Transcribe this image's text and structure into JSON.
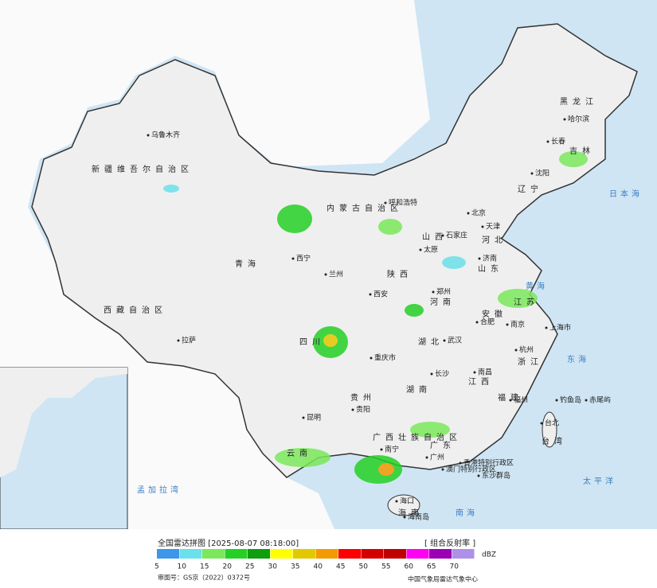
{
  "legend": {
    "title": "全国雷达拼图 [2025-08-07 08:18:00]",
    "product": "[ 组合反射率 ]",
    "unit": "dBZ",
    "levels": [
      {
        "value": 5,
        "color": "#3d96e8"
      },
      {
        "value": 10,
        "color": "#6ae0ea"
      },
      {
        "value": 15,
        "color": "#7ae85a"
      },
      {
        "value": 20,
        "color": "#25d025"
      },
      {
        "value": 25,
        "color": "#0e9e0e"
      },
      {
        "value": 30,
        "color": "#ffff00"
      },
      {
        "value": 35,
        "color": "#e2c800"
      },
      {
        "value": 40,
        "color": "#f29b00"
      },
      {
        "value": 45,
        "color": "#ff0000"
      },
      {
        "value": 50,
        "color": "#d40000"
      },
      {
        "value": 55,
        "color": "#c00000"
      },
      {
        "value": 60,
        "color": "#ff00f0"
      },
      {
        "value": 65,
        "color": "#9b00b4"
      },
      {
        "value": 70,
        "color": "#ae90e8"
      }
    ]
  },
  "footer": {
    "approval": "审图号：GS京（2022）0372号",
    "source": "中国气象局雷达气象中心"
  },
  "labels": [
    {
      "text": "乌鲁木齐",
      "kind": "city"
    },
    {
      "text": "新疆维吾尔自治区",
      "kind": "province"
    },
    {
      "text": "西藏自治区",
      "kind": "province"
    },
    {
      "text": "拉萨",
      "kind": "city"
    },
    {
      "text": "青海",
      "kind": "province"
    },
    {
      "text": "西宁",
      "kind": "city"
    },
    {
      "text": "兰州",
      "kind": "city"
    },
    {
      "text": "内蒙古自治区",
      "kind": "province"
    },
    {
      "text": "呼和浩特",
      "kind": "city"
    },
    {
      "text": "黑龙江",
      "kind": "province"
    },
    {
      "text": "哈尔滨",
      "kind": "city"
    },
    {
      "text": "吉林",
      "kind": "province"
    },
    {
      "text": "长春",
      "kind": "city"
    },
    {
      "text": "辽宁",
      "kind": "province"
    },
    {
      "text": "沈阳",
      "kind": "city"
    },
    {
      "text": "北京",
      "kind": "city"
    },
    {
      "text": "天津",
      "kind": "city"
    },
    {
      "text": "河北",
      "kind": "province"
    },
    {
      "text": "石家庄",
      "kind": "city"
    },
    {
      "text": "山西",
      "kind": "province"
    },
    {
      "text": "太原",
      "kind": "city"
    },
    {
      "text": "济南",
      "kind": "city"
    },
    {
      "text": "山东",
      "kind": "province"
    },
    {
      "text": "河南",
      "kind": "province"
    },
    {
      "text": "郑州",
      "kind": "city"
    },
    {
      "text": "陕西",
      "kind": "province"
    },
    {
      "text": "西安",
      "kind": "city"
    },
    {
      "text": "四川",
      "kind": "province"
    },
    {
      "text": "重庆市",
      "kind": "city"
    },
    {
      "text": "湖北",
      "kind": "province"
    },
    {
      "text": "武汉",
      "kind": "city"
    },
    {
      "text": "安徽",
      "kind": "province"
    },
    {
      "text": "合肥",
      "kind": "city"
    },
    {
      "text": "南京",
      "kind": "city"
    },
    {
      "text": "江苏",
      "kind": "province"
    },
    {
      "text": "上海市",
      "kind": "city"
    },
    {
      "text": "杭州",
      "kind": "city"
    },
    {
      "text": "浙江",
      "kind": "province"
    },
    {
      "text": "江西",
      "kind": "province"
    },
    {
      "text": "南昌",
      "kind": "city"
    },
    {
      "text": "湖南",
      "kind": "province"
    },
    {
      "text": "长沙",
      "kind": "city"
    },
    {
      "text": "贵州",
      "kind": "province"
    },
    {
      "text": "贵阳",
      "kind": "city"
    },
    {
      "text": "云南",
      "kind": "province"
    },
    {
      "text": "昆明",
      "kind": "city"
    },
    {
      "text": "广西壮族自治区",
      "kind": "province"
    },
    {
      "text": "南宁",
      "kind": "city"
    },
    {
      "text": "广东",
      "kind": "province"
    },
    {
      "text": "广州",
      "kind": "city"
    },
    {
      "text": "福建",
      "kind": "province"
    },
    {
      "text": "福州",
      "kind": "city"
    },
    {
      "text": "台湾",
      "kind": "province"
    },
    {
      "text": "台北",
      "kind": "city"
    },
    {
      "text": "香港特别行政区",
      "kind": "city"
    },
    {
      "text": "澳门特别行政区",
      "kind": "city"
    },
    {
      "text": "海南",
      "kind": "province"
    },
    {
      "text": "海口",
      "kind": "city"
    },
    {
      "text": "海南岛",
      "kind": "city"
    },
    {
      "text": "东沙群岛",
      "kind": "city"
    },
    {
      "text": "钓鱼岛",
      "kind": "city"
    },
    {
      "text": "赤尾屿",
      "kind": "city"
    },
    {
      "text": "日本海",
      "kind": "sea"
    },
    {
      "text": "黄海",
      "kind": "sea"
    },
    {
      "text": "东海",
      "kind": "sea"
    },
    {
      "text": "太平洋",
      "kind": "sea"
    },
    {
      "text": "南海",
      "kind": "sea"
    },
    {
      "text": "孟加拉湾",
      "kind": "sea"
    }
  ]
}
